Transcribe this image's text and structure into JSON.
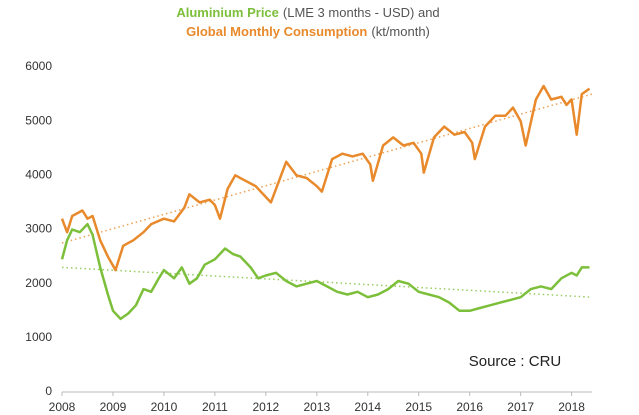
{
  "chart_data": {
    "type": "line",
    "title": [
      [
        "Aluminium Price",
        "(LME 3 months - USD) and"
      ],
      [
        "Global Monthly Consumption",
        "(kt/month)"
      ]
    ],
    "annotation": "Source : CRU",
    "xlim": [
      2008,
      2018.4
    ],
    "xticks": [
      2008,
      2009,
      2010,
      2011,
      2012,
      2013,
      2014,
      2015,
      2016,
      2017,
      2018
    ],
    "ylim": [
      0,
      6000
    ],
    "yticks": [
      0,
      1000,
      2000,
      3000,
      4000,
      5000,
      6000
    ],
    "grid": false,
    "series": [
      {
        "name": "Aluminium Price",
        "color": "#7cbf3a",
        "x": [
          2008.0,
          2008.1,
          2008.2,
          2008.35,
          2008.5,
          2008.6,
          2008.75,
          2008.9,
          2009.0,
          2009.15,
          2009.3,
          2009.45,
          2009.6,
          2009.75,
          2009.9,
          2010.0,
          2010.2,
          2010.35,
          2010.5,
          2010.65,
          2010.8,
          2011.0,
          2011.2,
          2011.35,
          2011.5,
          2011.7,
          2011.85,
          2012.0,
          2012.2,
          2012.4,
          2012.6,
          2012.8,
          2013.0,
          2013.2,
          2013.4,
          2013.6,
          2013.8,
          2014.0,
          2014.2,
          2014.4,
          2014.6,
          2014.8,
          2015.0,
          2015.2,
          2015.4,
          2015.6,
          2015.8,
          2016.0,
          2016.2,
          2016.4,
          2016.6,
          2016.8,
          2017.0,
          2017.2,
          2017.4,
          2017.6,
          2017.8,
          2018.0,
          2018.1,
          2018.2,
          2018.35
        ],
        "values": [
          2450,
          2800,
          3000,
          2950,
          3100,
          2900,
          2300,
          1800,
          1500,
          1350,
          1450,
          1600,
          1900,
          1850,
          2100,
          2250,
          2100,
          2300,
          2000,
          2100,
          2350,
          2450,
          2650,
          2550,
          2500,
          2300,
          2100,
          2150,
          2200,
          2050,
          1950,
          2000,
          2050,
          1950,
          1850,
          1800,
          1850,
          1750,
          1800,
          1900,
          2050,
          2000,
          1850,
          1800,
          1750,
          1650,
          1500,
          1500,
          1550,
          1600,
          1650,
          1700,
          1750,
          1900,
          1950,
          1900,
          2100,
          2200,
          2150,
          2300,
          2300
        ]
      },
      {
        "name": "Global Monthly Consumption",
        "color": "#e8892b",
        "x": [
          2008.0,
          2008.1,
          2008.2,
          2008.4,
          2008.5,
          2008.6,
          2008.75,
          2008.9,
          2009.05,
          2009.2,
          2009.4,
          2009.6,
          2009.75,
          2010.0,
          2010.2,
          2010.4,
          2010.5,
          2010.7,
          2010.9,
          2011.0,
          2011.1,
          2011.25,
          2011.4,
          2011.6,
          2011.8,
          2012.0,
          2012.1,
          2012.3,
          2012.4,
          2012.6,
          2012.8,
          2013.0,
          2013.1,
          2013.3,
          2013.5,
          2013.7,
          2013.9,
          2014.05,
          2014.1,
          2014.3,
          2014.5,
          2014.7,
          2014.9,
          2015.05,
          2015.1,
          2015.3,
          2015.5,
          2015.7,
          2015.9,
          2016.05,
          2016.1,
          2016.3,
          2016.5,
          2016.7,
          2016.85,
          2017.0,
          2017.1,
          2017.3,
          2017.45,
          2017.6,
          2017.8,
          2017.9,
          2018.0,
          2018.1,
          2018.2,
          2018.35
        ],
        "values": [
          3200,
          2950,
          3250,
          3350,
          3200,
          3250,
          2800,
          2500,
          2250,
          2700,
          2800,
          2950,
          3100,
          3200,
          3150,
          3400,
          3650,
          3500,
          3550,
          3450,
          3200,
          3750,
          4000,
          3900,
          3800,
          3600,
          3500,
          4000,
          4250,
          4000,
          3950,
          3800,
          3700,
          4300,
          4400,
          4350,
          4400,
          4200,
          3900,
          4550,
          4700,
          4550,
          4600,
          4400,
          4050,
          4700,
          4900,
          4750,
          4800,
          4600,
          4300,
          4900,
          5100,
          5100,
          5250,
          5000,
          4550,
          5400,
          5650,
          5400,
          5450,
          5300,
          5400,
          4750,
          5500,
          5600
        ]
      }
    ],
    "trendlines": [
      {
        "color": "#7cbf3a",
        "x": [
          2008,
          2018.4
        ],
        "values": [
          2300,
          1750
        ]
      },
      {
        "color": "#e8892b",
        "x": [
          2008,
          2018.4
        ],
        "values": [
          2750,
          5500
        ]
      }
    ]
  }
}
